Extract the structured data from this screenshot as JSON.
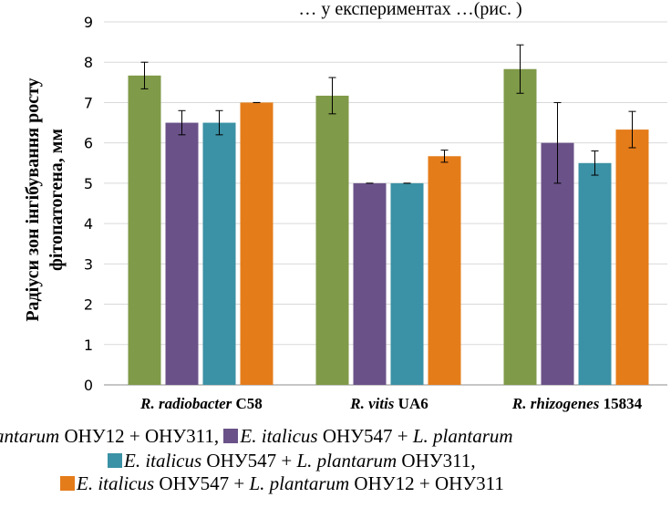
{
  "chart_data": {
    "type": "bar",
    "title_fragment": "… у експериментах …(рис. )",
    "ylabel_lines": [
      "Радіуси зон інгібування росту",
      "фітопатогена,  мм"
    ],
    "ylim": [
      0,
      9
    ],
    "yticks": [
      "0",
      "1",
      "2",
      "3",
      "4",
      "5",
      "6",
      "7",
      "8",
      "9"
    ],
    "categories": [
      {
        "italic": "R. radiobacter",
        "plain": " C58"
      },
      {
        "italic": "R. vitis",
        "plain": " UA6"
      },
      {
        "italic": "R. rhizogenes",
        "plain": " 15834"
      }
    ],
    "series": [
      {
        "color": "#7f9a48",
        "values": [
          7.67,
          7.17,
          7.83
        ],
        "errors": [
          0.33,
          0.45,
          0.6
        ]
      },
      {
        "color": "#6a5289",
        "values": [
          6.5,
          5.0,
          6.0
        ],
        "errors": [
          0.3,
          0.0,
          1.0
        ]
      },
      {
        "color": "#3b91a5",
        "values": [
          6.5,
          5.0,
          5.5
        ],
        "errors": [
          0.3,
          0.0,
          0.3
        ]
      },
      {
        "color": "#e57c1a",
        "values": [
          7.0,
          5.67,
          6.33
        ],
        "errors": [
          0.0,
          0.15,
          0.45
        ]
      }
    ],
    "grid": true,
    "legend_position": "bottom"
  },
  "legend": {
    "line1_a": "antarum",
    "line1_b": " ОНУ12 + ОНУ311, ",
    "line1_c": "E. italicus",
    "line1_d": " ОНУ547 + ",
    "line1_e": " L. plantarum",
    "line2_a": "E. italicus",
    "line2_b": " ОНУ547 + ",
    "line2_c": "L. plantarum",
    "line2_d": " ОНУ311,",
    "line3_a": "E. italicus",
    "line3_b": " ОНУ547 + ",
    "line3_c": "L. plantarum",
    "line3_d": " ОНУ12 + ОНУ311"
  }
}
